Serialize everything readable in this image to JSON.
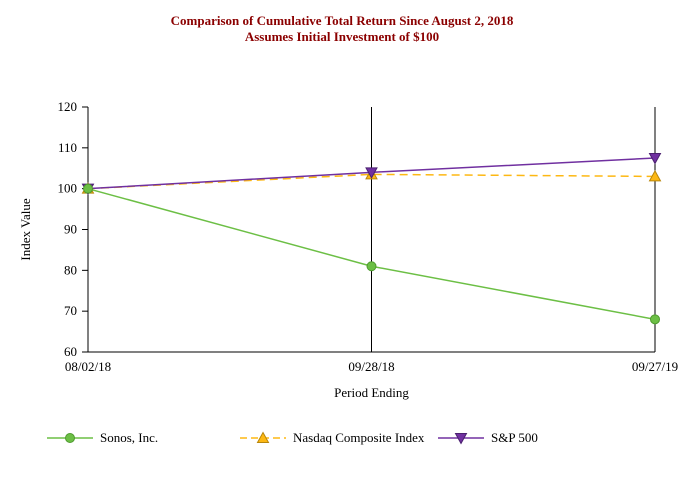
{
  "title": "Comparison of Cumulative Total Return Since August 2, 2018",
  "subtitle": "Assumes Initial Investment of $100",
  "title_color": "#8B0000",
  "chart_data": {
    "type": "line",
    "title": "Comparison of Cumulative Total Return Since August 2, 2018",
    "subtitle": "Assumes Initial Investment of $100",
    "xlabel": "Period Ending",
    "ylabel": "Index Value",
    "categories": [
      "08/02/18",
      "09/28/18",
      "09/27/19"
    ],
    "ylim": [
      60,
      120
    ],
    "ytick_step": 10,
    "grid": "vertical-category-lines",
    "legend_position": "bottom",
    "series": [
      {
        "name": "Sonos, Inc.",
        "values": [
          100,
          81,
          68
        ],
        "color": "#6CBF45",
        "edge": "#4E9A2E",
        "marker": "circle",
        "dash": "solid"
      },
      {
        "name": "Nasdaq Composite Index",
        "values": [
          100,
          103.5,
          103
        ],
        "color": "#FDB813",
        "edge": "#B8860B",
        "marker": "triangle-up",
        "dash": "dashed"
      },
      {
        "name": "S&P 500",
        "values": [
          100,
          104,
          107.5
        ],
        "color": "#7030A0",
        "edge": "#4B2070",
        "marker": "triangle-down",
        "dash": "solid"
      }
    ]
  }
}
